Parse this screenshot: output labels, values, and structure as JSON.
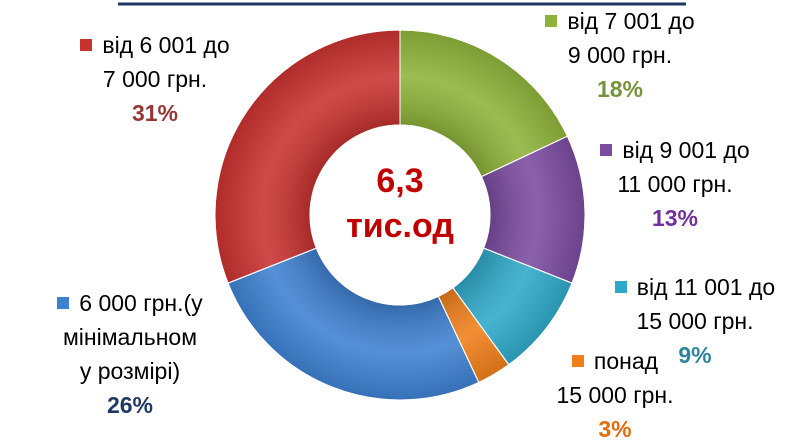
{
  "chart_data": {
    "type": "donut",
    "center_value": "6,3",
    "center_unit": "тис.од",
    "categories": [
      "від 7 001 до\n9 000 грн.",
      "від 9 001 до\n11 000 грн.",
      "від 11 001 до\n15 000 грн.",
      "понад\n15 000 грн.",
      "6 000 грн.(у\nмінімальном\nу розмірі)",
      "від 6 001 до\n7 000 грн."
    ],
    "values": [
      18,
      13,
      9,
      3,
      26,
      31
    ],
    "value_labels": [
      "18%",
      "13%",
      "9%",
      "3%",
      "26%",
      "31%"
    ],
    "colors": [
      "#8db33a",
      "#7b4ba0",
      "#2fa9c8",
      "#f07f1a",
      "#3e80d0",
      "#c8322f"
    ],
    "label_colors": [
      "#77933c",
      "#7030a0",
      "#31849b",
      "#e36c09",
      "#1f3864",
      "#953735"
    ]
  }
}
